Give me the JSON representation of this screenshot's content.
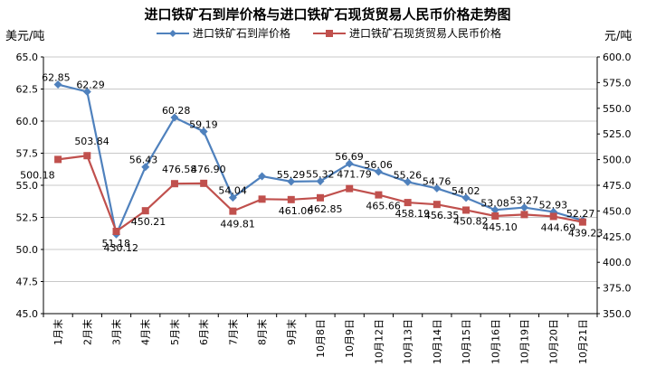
{
  "chart_data": {
    "type": "line",
    "title": "进口铁矿石到岸价格与进口铁矿石现货贸易人民币价格走势图",
    "ylabel_left": "美元/吨",
    "ylabel_right": "元/吨",
    "ylim_left": [
      45.0,
      65.0
    ],
    "ylim_right": [
      350.0,
      600.0
    ],
    "yticks_left": [
      "45.0",
      "47.5",
      "50.0",
      "52.5",
      "55.0",
      "57.5",
      "60.0",
      "62.5",
      "65.0"
    ],
    "yticks_right": [
      "350.0",
      "375.0",
      "400.0",
      "425.0",
      "450.0",
      "475.0",
      "500.0",
      "525.0",
      "550.0",
      "575.0",
      "600.0"
    ],
    "categories": [
      "1月末",
      "2月末",
      "3月末",
      "4月末",
      "5月末",
      "6月末",
      "7月末",
      "8月末",
      "9月末",
      "10月8日",
      "10月9日",
      "10月12日",
      "10月13日",
      "10月14日",
      "10月15日",
      "10月16日",
      "10月19日",
      "10月20日",
      "10月21日"
    ],
    "legend_position": "top",
    "grid": true,
    "series": [
      {
        "name": "进口铁矿石到岸价格",
        "axis": "left",
        "color": "#4f81bd",
        "marker": "diamond",
        "values": [
          62.85,
          62.29,
          51.18,
          56.43,
          60.28,
          59.19,
          54.04,
          55.7,
          55.29,
          55.32,
          56.69,
          56.06,
          55.26,
          54.76,
          54.02,
          53.08,
          53.27,
          52.93,
          52.27
        ],
        "labels": [
          "62.85",
          "62.29",
          "51.18",
          "56.43",
          "60.28",
          "59.19",
          "54.04",
          "",
          "55.29",
          "55.32",
          "56.69",
          "56.06",
          "55.26",
          "54.76",
          "54.02",
          "53.08",
          "53.27",
          "52.93",
          "52.27"
        ]
      },
      {
        "name": "进口铁矿石现货贸易人民币价格",
        "axis": "right",
        "color": "#c0504d",
        "marker": "square",
        "values": [
          500.18,
          503.84,
          430.12,
          450.21,
          476.58,
          476.9,
          449.81,
          461.5,
          461.06,
          462.85,
          471.79,
          465.66,
          458.19,
          456.35,
          450.82,
          445.1,
          446.5,
          444.69,
          439.23
        ],
        "labels": [
          "500.18",
          "503.84",
          "430.12",
          "450.21",
          "476.58",
          "476.90",
          "449.81",
          "",
          "461.06",
          "462.85",
          "471.79",
          "465.66",
          "458.19",
          "456.35",
          "450.82",
          "445.10",
          "",
          "444.69",
          "439.23"
        ]
      }
    ]
  }
}
